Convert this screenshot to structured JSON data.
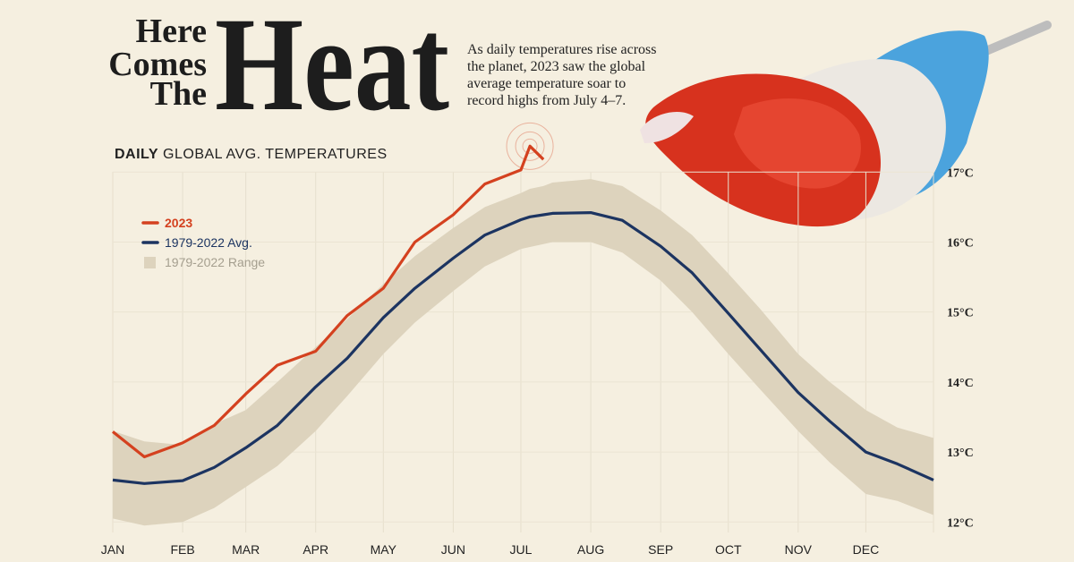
{
  "header": {
    "title_lines": [
      "Here",
      "Comes",
      "The"
    ],
    "title_big": "Heat",
    "description": [
      "As daily temperatures rise across",
      "the planet, 2023 saw the global",
      "average temperature soar to",
      "record highs from July 4–7."
    ]
  },
  "chart_data": {
    "type": "line",
    "subtitle_bold": "DAILY",
    "subtitle": "GLOBAL AVG. TEMPERATURES",
    "x": [
      1,
      15,
      32,
      46,
      60,
      74,
      91,
      105,
      121,
      135,
      152,
      166,
      182,
      186,
      192,
      196,
      213,
      227,
      244,
      258,
      274,
      288,
      305,
      319,
      335,
      349,
      365
    ],
    "xlim": [
      1,
      365
    ],
    "xticks": [
      {
        "value": 1,
        "label": "JAN"
      },
      {
        "value": 32,
        "label": "FEB"
      },
      {
        "value": 60,
        "label": "MAR"
      },
      {
        "value": 91,
        "label": "APR"
      },
      {
        "value": 121,
        "label": "MAY"
      },
      {
        "value": 152,
        "label": "JUN"
      },
      {
        "value": 182,
        "label": "JUL"
      },
      {
        "value": 213,
        "label": "AUG"
      },
      {
        "value": 244,
        "label": "SEP"
      },
      {
        "value": 274,
        "label": "OCT"
      },
      {
        "value": 305,
        "label": "NOV"
      },
      {
        "value": 335,
        "label": "DEC"
      }
    ],
    "ylim": [
      11.85,
      17.4
    ],
    "yticks": [
      {
        "value": 12,
        "label": "12°C"
      },
      {
        "value": 13,
        "label": "13°C"
      },
      {
        "value": 14,
        "label": "14°C"
      },
      {
        "value": 15,
        "label": "15°C"
      },
      {
        "value": 16,
        "label": "16°C"
      },
      {
        "value": 17,
        "label": "17°C"
      }
    ],
    "grid": true,
    "legend": "upper left",
    "series": [
      {
        "name": "2023",
        "color": "#d4411f",
        "values": [
          13.29,
          12.93,
          13.13,
          13.38,
          13.83,
          14.24,
          14.44,
          14.95,
          15.34,
          16.0,
          16.39,
          16.83,
          17.03,
          17.37,
          17.18,
          null,
          null,
          null,
          null,
          null,
          null,
          null,
          null,
          null,
          null,
          null,
          null
        ]
      },
      {
        "name": "1979-2022 Avg.",
        "color": "#1c3461",
        "values": [
          12.6,
          12.55,
          12.59,
          12.78,
          13.06,
          13.38,
          13.93,
          14.34,
          14.92,
          15.34,
          15.77,
          16.1,
          16.32,
          16.36,
          16.39,
          16.41,
          16.42,
          16.31,
          15.94,
          15.56,
          14.98,
          14.47,
          13.85,
          13.44,
          13.0,
          12.83,
          12.6
        ]
      },
      {
        "name": "1979-2022 Range",
        "color": "#ddd3bd",
        "low": [
          12.05,
          11.95,
          12.0,
          12.2,
          12.5,
          12.8,
          13.3,
          13.8,
          14.4,
          14.85,
          15.3,
          15.65,
          15.9,
          15.93,
          15.97,
          16.0,
          16.0,
          15.85,
          15.45,
          15.0,
          14.4,
          13.9,
          13.3,
          12.85,
          12.4,
          12.3,
          12.1
        ],
        "high": [
          13.3,
          13.15,
          13.1,
          13.4,
          13.6,
          14.0,
          14.5,
          14.9,
          15.4,
          15.8,
          16.2,
          16.5,
          16.7,
          16.76,
          16.8,
          16.85,
          16.9,
          16.8,
          16.45,
          16.1,
          15.55,
          15.05,
          14.4,
          14.0,
          13.6,
          13.35,
          13.2
        ]
      }
    ]
  }
}
